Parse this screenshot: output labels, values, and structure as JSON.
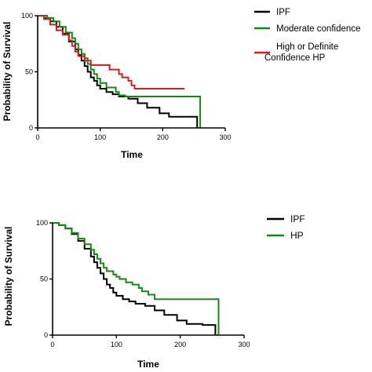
{
  "chart_data": [
    {
      "type": "line",
      "step": true,
      "xlabel": "Time",
      "ylabel": "Probability of Survival",
      "xlim": [
        0,
        300
      ],
      "ylim": [
        0,
        100
      ],
      "xticks": [
        0,
        100,
        200,
        300
      ],
      "yticks": [
        0,
        50,
        100
      ],
      "legend_position": "right",
      "series": [
        {
          "name": "IPF",
          "color": "#000000",
          "points": [
            [
              0,
              100
            ],
            [
              10,
              98
            ],
            [
              20,
              95
            ],
            [
              30,
              90
            ],
            [
              40,
              84
            ],
            [
              50,
              77
            ],
            [
              60,
              70
            ],
            [
              65,
              65
            ],
            [
              70,
              60
            ],
            [
              75,
              55
            ],
            [
              80,
              50
            ],
            [
              85,
              45
            ],
            [
              90,
              42
            ],
            [
              95,
              38
            ],
            [
              100,
              35
            ],
            [
              110,
              32
            ],
            [
              120,
              30
            ],
            [
              130,
              28
            ],
            [
              145,
              26
            ],
            [
              160,
              22
            ],
            [
              175,
              18
            ],
            [
              195,
              13
            ],
            [
              210,
              10
            ],
            [
              235,
              10
            ],
            [
              255,
              10
            ],
            [
              255,
              0
            ]
          ]
        },
        {
          "name": "Moderate confidence",
          "color": "#138a13",
          "points": [
            [
              0,
              100
            ],
            [
              15,
              98
            ],
            [
              25,
              95
            ],
            [
              35,
              90
            ],
            [
              45,
              85
            ],
            [
              55,
              80
            ],
            [
              60,
              75
            ],
            [
              65,
              70
            ],
            [
              70,
              66
            ],
            [
              75,
              62
            ],
            [
              80,
              57
            ],
            [
              85,
              52
            ],
            [
              90,
              48
            ],
            [
              95,
              44
            ],
            [
              100,
              40
            ],
            [
              110,
              36
            ],
            [
              125,
              32
            ],
            [
              130,
              29
            ],
            [
              140,
              28
            ],
            [
              165,
              28
            ],
            [
              260,
              28
            ],
            [
              260,
              0
            ]
          ]
        },
        {
          "name": "High or Definite Confidence HP",
          "color": "#d41c1c",
          "points": [
            [
              0,
              100
            ],
            [
              10,
              97
            ],
            [
              20,
              92
            ],
            [
              30,
              87
            ],
            [
              40,
              83
            ],
            [
              50,
              78
            ],
            [
              55,
              73
            ],
            [
              60,
              68
            ],
            [
              65,
              64
            ],
            [
              75,
              60
            ],
            [
              85,
              56
            ],
            [
              110,
              56
            ],
            [
              115,
              52
            ],
            [
              125,
              52
            ],
            [
              130,
              48
            ],
            [
              135,
              45
            ],
            [
              145,
              42
            ],
            [
              150,
              38
            ],
            [
              155,
              35
            ],
            [
              235,
              35
            ]
          ]
        }
      ]
    },
    {
      "type": "line",
      "step": true,
      "xlabel": "Time",
      "ylabel": "Probability of Survival",
      "xlim": [
        0,
        300
      ],
      "ylim": [
        0,
        100
      ],
      "xticks": [
        0,
        100,
        200,
        300
      ],
      "yticks": [
        0,
        50,
        100
      ],
      "legend_position": "right",
      "series": [
        {
          "name": "IPF",
          "color": "#000000",
          "points": [
            [
              0,
              100
            ],
            [
              10,
              98
            ],
            [
              20,
              95
            ],
            [
              30,
              90
            ],
            [
              40,
              84
            ],
            [
              50,
              77
            ],
            [
              60,
              70
            ],
            [
              65,
              65
            ],
            [
              70,
              60
            ],
            [
              75,
              55
            ],
            [
              80,
              50
            ],
            [
              85,
              45
            ],
            [
              90,
              42
            ],
            [
              95,
              38
            ],
            [
              100,
              35
            ],
            [
              110,
              32
            ],
            [
              120,
              30
            ],
            [
              130,
              28
            ],
            [
              145,
              26
            ],
            [
              160,
              22
            ],
            [
              175,
              18
            ],
            [
              195,
              13
            ],
            [
              210,
              10
            ],
            [
              235,
              9
            ],
            [
              255,
              9
            ],
            [
              255,
              0
            ]
          ]
        },
        {
          "name": "HP",
          "color": "#138a13",
          "points": [
            [
              0,
              100
            ],
            [
              10,
              98
            ],
            [
              20,
              95
            ],
            [
              30,
              91
            ],
            [
              40,
              86
            ],
            [
              50,
              81
            ],
            [
              60,
              76
            ],
            [
              65,
              72
            ],
            [
              70,
              68
            ],
            [
              75,
              64
            ],
            [
              80,
              60
            ],
            [
              85,
              57
            ],
            [
              95,
              54
            ],
            [
              100,
              52
            ],
            [
              105,
              50
            ],
            [
              115,
              47
            ],
            [
              125,
              45
            ],
            [
              135,
              42
            ],
            [
              140,
              39
            ],
            [
              150,
              36
            ],
            [
              160,
              32
            ],
            [
              260,
              32
            ],
            [
              260,
              0
            ]
          ]
        }
      ]
    }
  ]
}
